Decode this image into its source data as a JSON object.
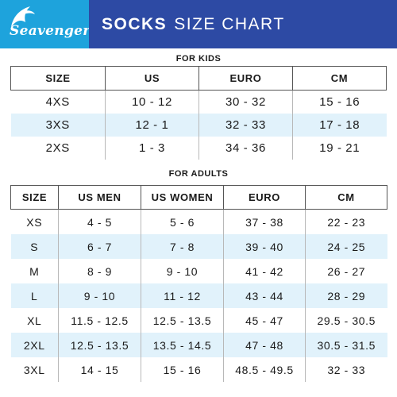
{
  "brand": {
    "logo_text": "Seavenger",
    "logo_bg": "#1ea3dc",
    "title_bg": "#2d4aa4"
  },
  "title": {
    "bold": "SOCKS",
    "light": "SIZE CHART"
  },
  "kids": {
    "label": "FOR KIDS",
    "headers": [
      "SIZE",
      "US",
      "EURO",
      "CM"
    ],
    "rows": [
      [
        "4XS",
        "10 - 12",
        "30 - 32",
        "15 - 16"
      ],
      [
        "3XS",
        "12 - 1",
        "32 - 33",
        "17 - 18"
      ],
      [
        "2XS",
        "1 - 3",
        "34 - 36",
        "19 - 21"
      ]
    ]
  },
  "adults": {
    "label": "FOR ADULTS",
    "headers": [
      "SIZE",
      "US MEN",
      "US WOMEN",
      "EURO",
      "CM"
    ],
    "rows": [
      [
        "XS",
        "4 - 5",
        "5 - 6",
        "37 - 38",
        "22 - 23"
      ],
      [
        "S",
        "6 - 7",
        "7 - 8",
        "39 - 40",
        "24 - 25"
      ],
      [
        "M",
        "8 - 9",
        "9 - 10",
        "41 - 42",
        "26 - 27"
      ],
      [
        "L",
        "9 - 10",
        "11 - 12",
        "43 - 44",
        "28 - 29"
      ],
      [
        "XL",
        "11.5 - 12.5",
        "12.5 - 13.5",
        "45 - 47",
        "29.5 - 30.5"
      ],
      [
        "2XL",
        "12.5 - 13.5",
        "13.5 - 14.5",
        "47 - 48",
        "30.5 - 31.5"
      ],
      [
        "3XL",
        "14 - 15",
        "15 - 16",
        "48.5 - 49.5",
        "32 - 33"
      ]
    ]
  },
  "colors": {
    "alt_row": "#e1f2fb"
  }
}
